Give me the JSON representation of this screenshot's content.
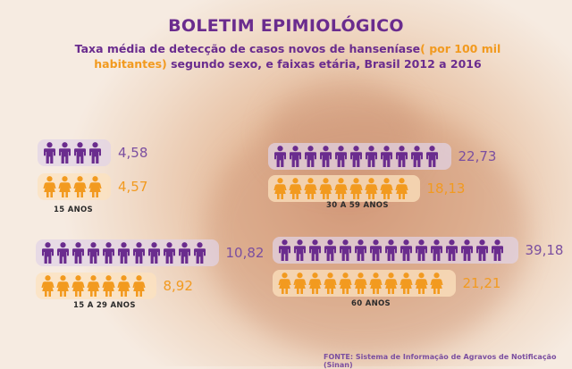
{
  "header": {
    "title": "BOLETIM EPIMIOLÓGICO",
    "subtitle_pre": "Taxa média de detecção de casos  novos de hanseníase",
    "subtitle_highlight": "( por 100 mil habitantes)",
    "subtitle_post": " segundo sexo, e faixas etária, Brasil 2012 a 2016"
  },
  "colors": {
    "male": "#6a2c8e",
    "female": "#f29a1f"
  },
  "chart_data": {
    "type": "pictograph",
    "title": "BOLETIM EPIMIOLÓGICO",
    "subtitle": "Taxa média de detecção de casos  novos de hanseníase( por 100 mil habitantes) segundo sexo, e faixas etária, Brasil 2012 a 2016",
    "series": [
      {
        "name": "male",
        "icon": "male-person-icon"
      },
      {
        "name": "female",
        "icon": "female-person-icon"
      }
    ],
    "groups": [
      {
        "label": "15 ANOS",
        "male": {
          "value": 4.58,
          "display": "4,58",
          "icons": 4
        },
        "female": {
          "value": 4.57,
          "display": "4,57",
          "icons": 4
        }
      },
      {
        "label": "30 A 59 ANOS",
        "male": {
          "value": 22.73,
          "display": "22,73",
          "icons": 11
        },
        "female": {
          "value": 18.13,
          "display": "18,13",
          "icons": 9
        }
      },
      {
        "label": "15 A 29 ANOS",
        "male": {
          "value": 10.82,
          "display": "10,82",
          "icons": 11
        },
        "female": {
          "value": 8.92,
          "display": "8,92",
          "icons": 7
        }
      },
      {
        "label": "60 ANOS",
        "male": {
          "value": 39.18,
          "display": "39,18",
          "icons": 15
        },
        "female": {
          "value": 21.21,
          "display": "21,21",
          "icons": 11
        }
      }
    ],
    "source": "FONTE: Sistema de Informação de Agravos de Notificação (Sinan)"
  }
}
